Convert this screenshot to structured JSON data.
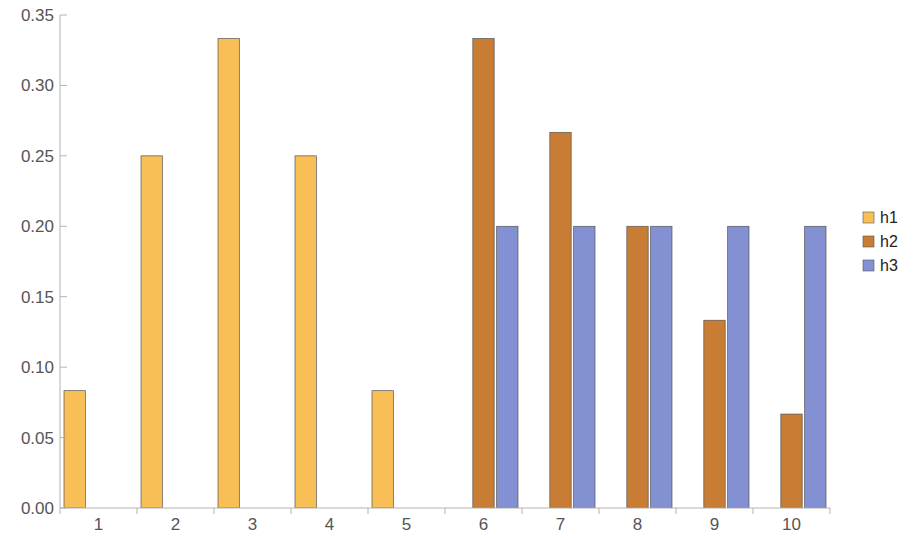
{
  "chart_data": {
    "type": "bar",
    "categories": [
      "1",
      "2",
      "3",
      "4",
      "5",
      "6",
      "7",
      "8",
      "9",
      "10"
    ],
    "series": [
      {
        "name": "h1",
        "color": "#f9bf57",
        "values": [
          0.0833,
          0.25,
          0.3333,
          0.25,
          0.0833,
          0,
          0,
          0,
          0,
          0
        ]
      },
      {
        "name": "h2",
        "color": "#c97d34",
        "values": [
          0,
          0,
          0,
          0,
          0,
          0.3333,
          0.2667,
          0.2,
          0.1333,
          0.0667
        ]
      },
      {
        "name": "h3",
        "color": "#8390d2",
        "values": [
          0,
          0,
          0,
          0,
          0,
          0.2,
          0.2,
          0.2,
          0.2,
          0.2
        ]
      }
    ],
    "ylim": [
      0,
      0.35
    ],
    "yticks": [
      {
        "value": 0,
        "label": "0.00"
      },
      0.05,
      {
        "value": 0.1,
        "label": "0.10"
      },
      0.15,
      {
        "value": 0.2,
        "label": "0.20"
      },
      0.25,
      {
        "value": 0.3,
        "label": "0.30"
      },
      0.35
    ],
    "grid": false,
    "legend": "right"
  }
}
